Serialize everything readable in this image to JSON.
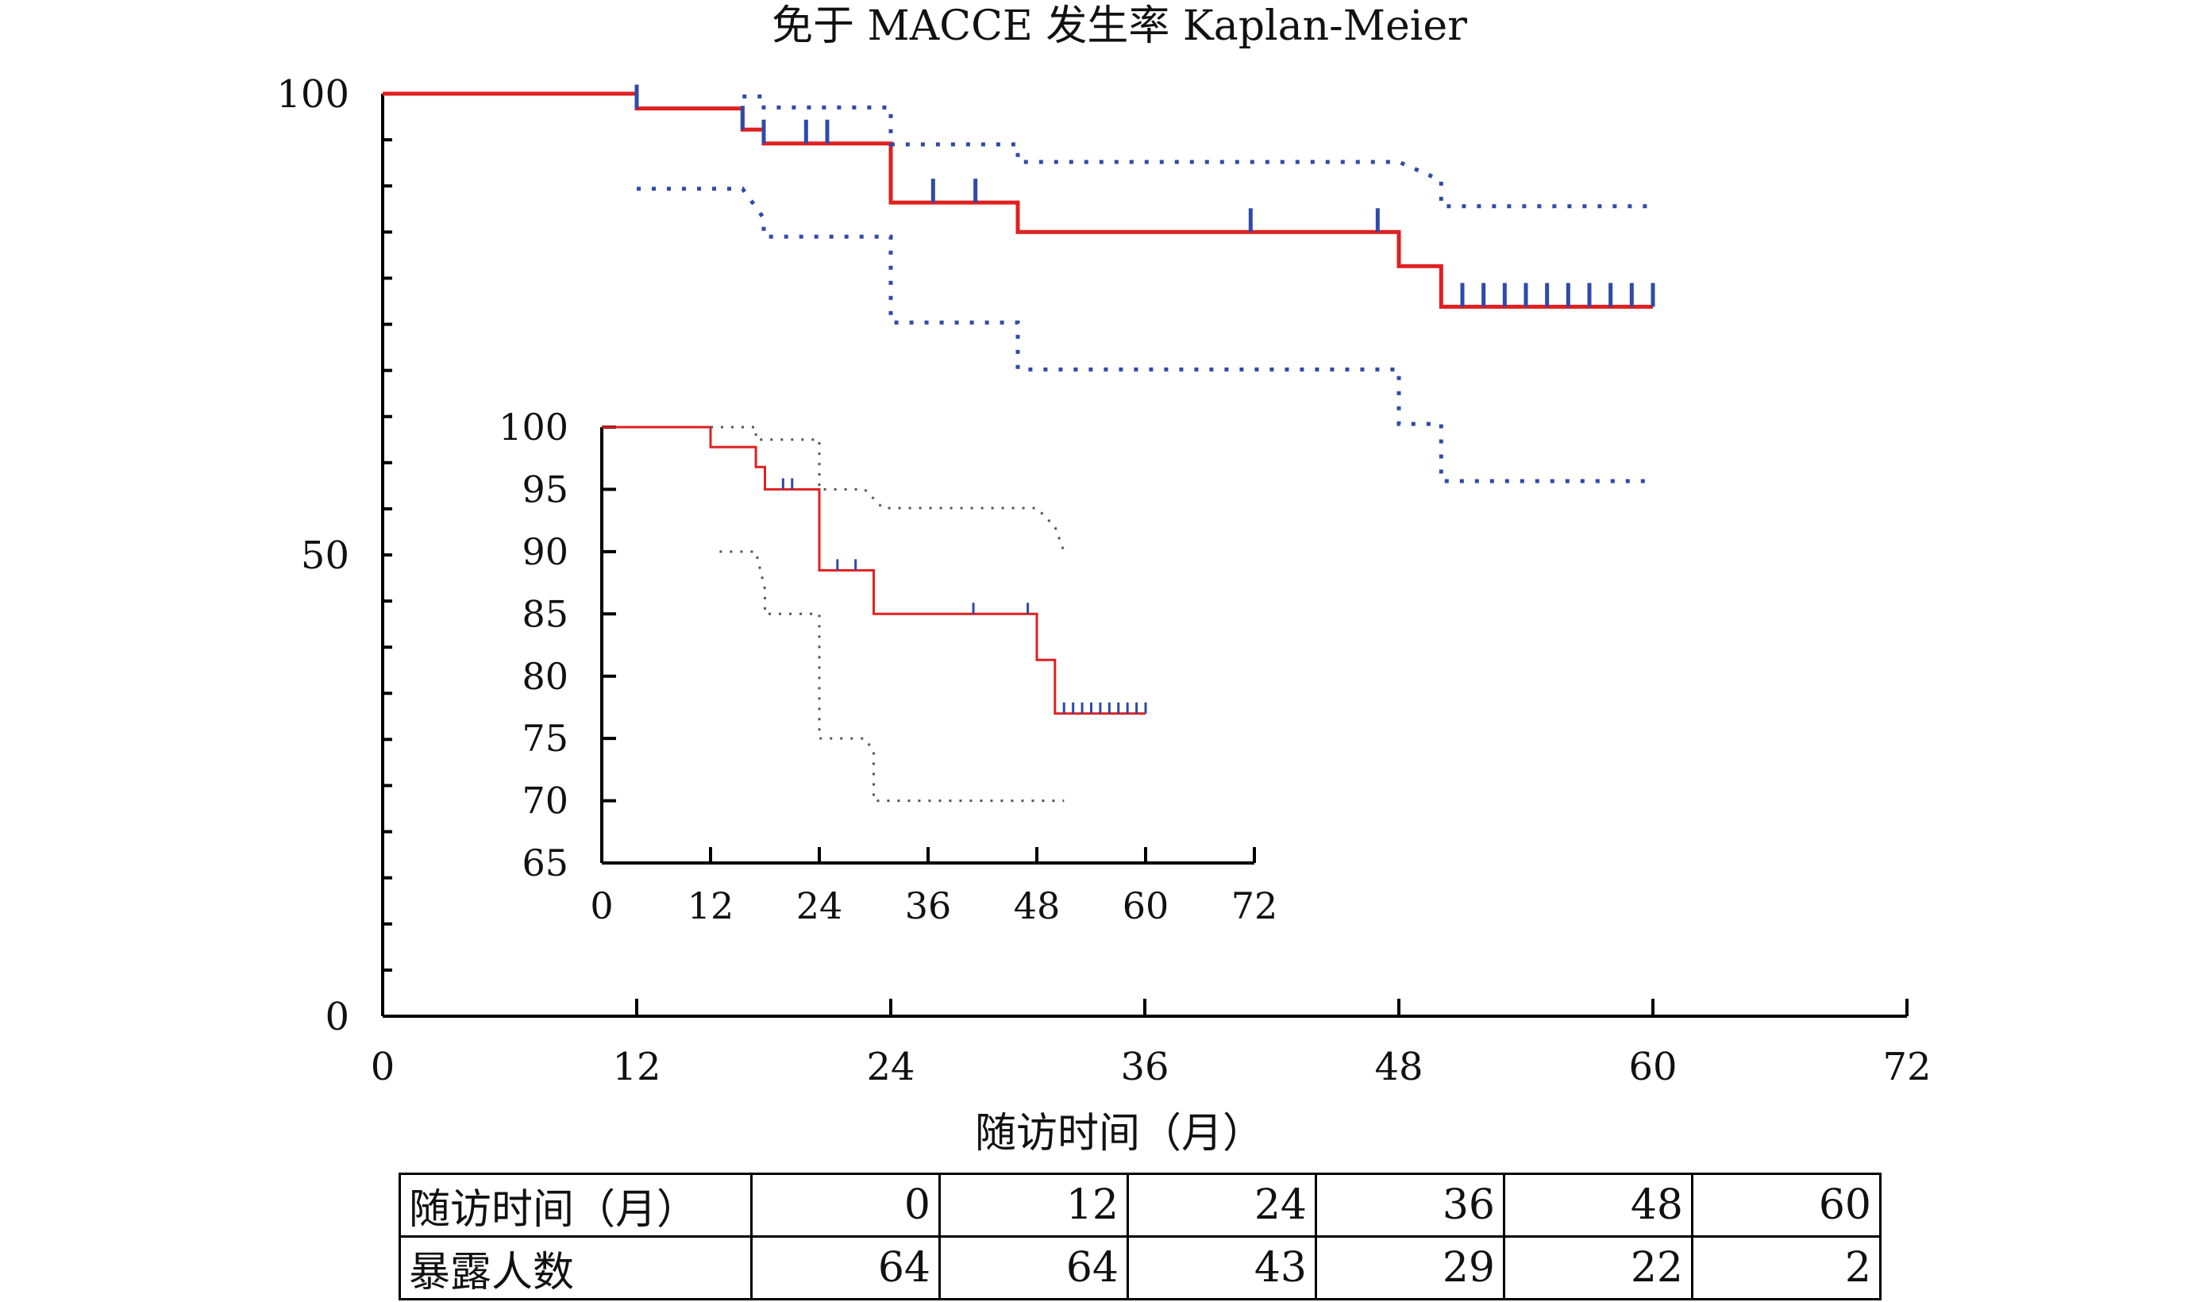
{
  "chart_data": [
    {
      "type": "line",
      "title": "免于 MACCE 发生率 Kaplan-Meier",
      "xlabel": "随访时间（月）",
      "ylabel": "",
      "xlim": [
        0,
        72
      ],
      "ylim": [
        0,
        100
      ],
      "x_ticks": [
        0,
        12,
        24,
        36,
        48,
        60,
        72
      ],
      "y_tick_labels": [
        0,
        50,
        100
      ],
      "grid": false,
      "series": [
        {
          "role": "survival",
          "style": "solid",
          "color": "#e02020",
          "steps": [
            [
              0,
              100
            ],
            [
              12,
              100
            ],
            [
              12,
              98.4
            ],
            [
              17,
              98.4
            ],
            [
              17,
              96.1
            ],
            [
              18,
              96.1
            ],
            [
              18,
              94.6
            ],
            [
              24,
              94.6
            ],
            [
              24,
              88.2
            ],
            [
              30,
              88.2
            ],
            [
              30,
              85
            ],
            [
              48,
              85
            ],
            [
              48,
              81.3
            ],
            [
              50,
              81.3
            ],
            [
              50,
              76.9
            ],
            [
              60,
              76.9
            ]
          ],
          "censor_marks": [
            12,
            17,
            18,
            20,
            21,
            26,
            28,
            41,
            47,
            51,
            52,
            53,
            54,
            55,
            56,
            57,
            58,
            59,
            60
          ]
        },
        {
          "role": "upper-ci",
          "style": "dotted",
          "color": "#2f4aa8",
          "steps": [
            [
              17,
              99.7
            ],
            [
              18,
              99.7
            ],
            [
              18,
              98.5
            ],
            [
              24,
              98.5
            ],
            [
              24,
              94.5
            ],
            [
              29,
              94.5
            ],
            [
              30,
              94.5
            ],
            [
              30,
              92.6
            ],
            [
              48,
              92.6
            ],
            [
              50,
              90.6
            ],
            [
              50,
              87.8
            ],
            [
              60,
              87.8
            ]
          ]
        },
        {
          "role": "lower-ci",
          "style": "dotted",
          "color": "#2f4aa8",
          "steps": [
            [
              12,
              89.7
            ],
            [
              17,
              89.7
            ],
            [
              18,
              86.5
            ],
            [
              18,
              84.5
            ],
            [
              24,
              84.5
            ],
            [
              24,
              75.2
            ],
            [
              30,
              75.2
            ],
            [
              30,
              70.1
            ],
            [
              48,
              70.1
            ],
            [
              48,
              64.2
            ],
            [
              50,
              64.2
            ],
            [
              50,
              58
            ],
            [
              60,
              58
            ]
          ]
        }
      ]
    },
    {
      "type": "line",
      "role": "inset-zoom",
      "title": "",
      "xlim": [
        0,
        72
      ],
      "ylim": [
        65,
        100
      ],
      "x_ticks": [
        0,
        12,
        24,
        36,
        48,
        60,
        72
      ],
      "y_ticks": [
        65,
        70,
        75,
        80,
        85,
        90,
        95,
        100
      ],
      "series": [
        {
          "role": "survival",
          "style": "solid",
          "color": "#e02020",
          "steps": [
            [
              0,
              100
            ],
            [
              12,
              100
            ],
            [
              12,
              98.4
            ],
            [
              17,
              98.4
            ],
            [
              17,
              96.8
            ],
            [
              18,
              96.8
            ],
            [
              18,
              95
            ],
            [
              24,
              95
            ],
            [
              24,
              88.5
            ],
            [
              30,
              88.5
            ],
            [
              30,
              85
            ],
            [
              48,
              85
            ],
            [
              48,
              81.3
            ],
            [
              50,
              81.3
            ],
            [
              50,
              77
            ],
            [
              60,
              77
            ]
          ],
          "censor_marks": [
            20,
            21,
            26,
            28,
            41,
            47,
            51,
            52,
            53,
            54,
            55,
            56,
            57,
            58,
            59,
            60
          ]
        },
        {
          "role": "upper-ci",
          "style": "dotted",
          "color": "#555555",
          "steps": [
            [
              12,
              100
            ],
            [
              17,
              100
            ],
            [
              17,
              99
            ],
            [
              24,
              99
            ],
            [
              24,
              95
            ],
            [
              29,
              95
            ],
            [
              31,
              93.5
            ],
            [
              48,
              93.5
            ],
            [
              50,
              92
            ],
            [
              51,
              90
            ]
          ]
        },
        {
          "role": "lower-ci",
          "style": "dotted",
          "color": "#555555",
          "steps": [
            [
              13,
              90
            ],
            [
              17,
              90
            ],
            [
              18,
              87
            ],
            [
              18,
              85
            ],
            [
              24,
              85
            ],
            [
              24,
              75
            ],
            [
              29,
              75
            ],
            [
              30,
              74
            ],
            [
              30,
              70
            ],
            [
              51,
              70
            ]
          ]
        }
      ]
    }
  ],
  "risk_table": {
    "row_time_label": "随访时间（月）",
    "row_count_label": "暴露人数",
    "times": [
      "0",
      "12",
      "24",
      "36",
      "48",
      "60"
    ],
    "counts": [
      "64",
      "64",
      "43",
      "29",
      "22",
      "2"
    ]
  }
}
